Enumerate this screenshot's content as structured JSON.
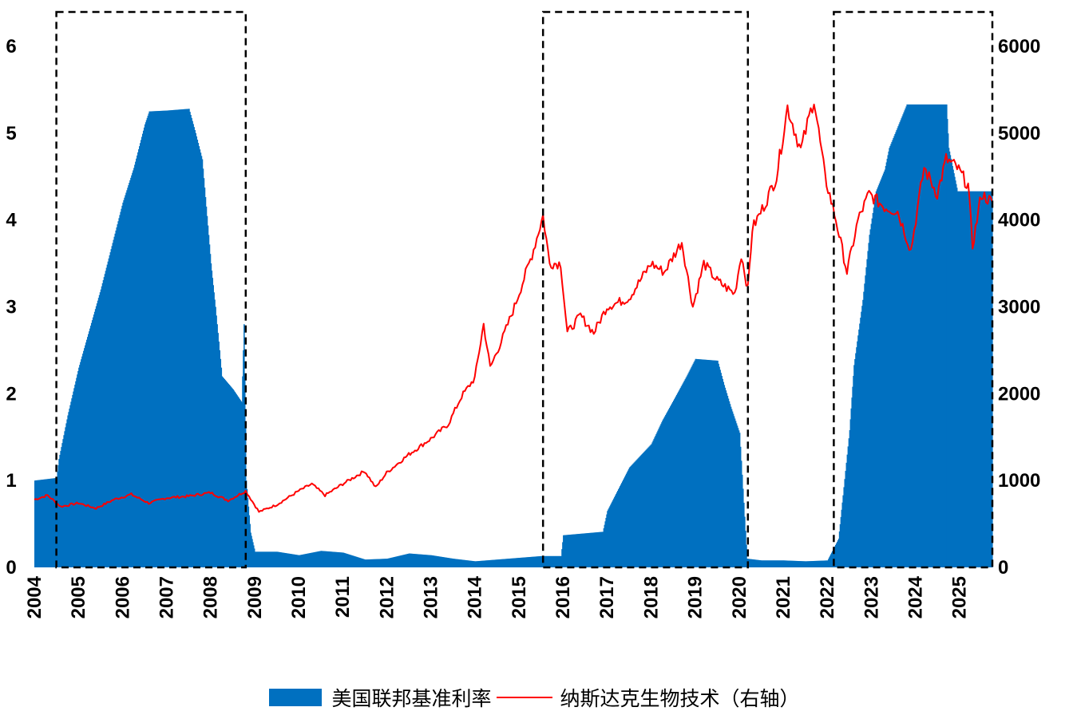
{
  "chart_data": {
    "type": "bar+line",
    "colors": {
      "bar": "#0070C0",
      "line": "#FF0000",
      "box": "#000000"
    },
    "x_years": [
      "2004",
      "2005",
      "2006",
      "2007",
      "2008",
      "2009",
      "2010",
      "2011",
      "2012",
      "2013",
      "2014",
      "2015",
      "2016",
      "2017",
      "2018",
      "2019",
      "2020",
      "2021",
      "2022",
      "2023",
      "2024",
      "2025"
    ],
    "x_range": [
      2004.0,
      2025.75
    ],
    "left_axis": {
      "ticks": [
        "0",
        "1",
        "2",
        "3",
        "4",
        "5",
        "6"
      ],
      "range": [
        0,
        6
      ]
    },
    "right_axis": {
      "ticks": [
        "0",
        "1000",
        "2000",
        "3000",
        "4000",
        "5000",
        "6000"
      ],
      "range": [
        0,
        6000
      ]
    },
    "series": [
      {
        "name": "美国联邦基准利率",
        "kind": "bar",
        "axis": "left",
        "points": [
          [
            2004.0,
            1.0
          ],
          [
            2004.5,
            1.03
          ],
          [
            2004.55,
            1.25
          ],
          [
            2004.75,
            1.75
          ],
          [
            2005.0,
            2.3
          ],
          [
            2005.25,
            2.75
          ],
          [
            2005.5,
            3.2
          ],
          [
            2005.75,
            3.7
          ],
          [
            2006.0,
            4.2
          ],
          [
            2006.25,
            4.6
          ],
          [
            2006.5,
            5.1
          ],
          [
            2006.6,
            5.25
          ],
          [
            2007.0,
            5.26
          ],
          [
            2007.5,
            5.28
          ],
          [
            2007.65,
            5.0
          ],
          [
            2007.8,
            4.7
          ],
          [
            2008.0,
            3.5
          ],
          [
            2008.1,
            3.0
          ],
          [
            2008.25,
            2.2
          ],
          [
            2008.5,
            2.05
          ],
          [
            2008.7,
            1.9
          ],
          [
            2008.75,
            2.8
          ],
          [
            2008.8,
            1.0
          ],
          [
            2008.9,
            0.4
          ],
          [
            2009.0,
            0.18
          ],
          [
            2009.5,
            0.18
          ],
          [
            2010.0,
            0.14
          ],
          [
            2010.5,
            0.19
          ],
          [
            2011.0,
            0.17
          ],
          [
            2011.5,
            0.09
          ],
          [
            2012.0,
            0.1
          ],
          [
            2012.5,
            0.16
          ],
          [
            2013.0,
            0.14
          ],
          [
            2013.5,
            0.1
          ],
          [
            2014.0,
            0.07
          ],
          [
            2014.5,
            0.09
          ],
          [
            2015.0,
            0.11
          ],
          [
            2015.5,
            0.13
          ],
          [
            2015.95,
            0.13
          ],
          [
            2016.0,
            0.37
          ],
          [
            2016.9,
            0.41
          ],
          [
            2017.0,
            0.65
          ],
          [
            2017.25,
            0.9
          ],
          [
            2017.5,
            1.15
          ],
          [
            2018.0,
            1.42
          ],
          [
            2018.25,
            1.69
          ],
          [
            2018.5,
            1.92
          ],
          [
            2018.8,
            2.2
          ],
          [
            2019.0,
            2.4
          ],
          [
            2019.5,
            2.38
          ],
          [
            2019.65,
            2.1
          ],
          [
            2019.8,
            1.85
          ],
          [
            2020.0,
            1.55
          ],
          [
            2020.17,
            0.1
          ],
          [
            2020.5,
            0.08
          ],
          [
            2021.0,
            0.08
          ],
          [
            2021.5,
            0.07
          ],
          [
            2022.0,
            0.08
          ],
          [
            2022.25,
            0.33
          ],
          [
            2022.35,
            0.83
          ],
          [
            2022.5,
            1.58
          ],
          [
            2022.6,
            2.33
          ],
          [
            2022.8,
            3.08
          ],
          [
            2022.95,
            3.83
          ],
          [
            2023.1,
            4.33
          ],
          [
            2023.3,
            4.58
          ],
          [
            2023.4,
            4.83
          ],
          [
            2023.6,
            5.08
          ],
          [
            2023.8,
            5.33
          ],
          [
            2024.7,
            5.33
          ],
          [
            2024.75,
            4.83
          ],
          [
            2024.85,
            4.58
          ],
          [
            2024.95,
            4.33
          ],
          [
            2025.75,
            4.33
          ]
        ]
      },
      {
        "name": "纳斯达克生物技术（右轴）",
        "kind": "line",
        "axis": "right",
        "points": [
          [
            2004.0,
            780
          ],
          [
            2004.3,
            830
          ],
          [
            2004.6,
            700
          ],
          [
            2005.0,
            740
          ],
          [
            2005.4,
            680
          ],
          [
            2005.8,
            780
          ],
          [
            2006.2,
            840
          ],
          [
            2006.6,
            740
          ],
          [
            2007.0,
            800
          ],
          [
            2007.5,
            820
          ],
          [
            2008.0,
            860
          ],
          [
            2008.4,
            770
          ],
          [
            2008.8,
            880
          ],
          [
            2009.1,
            640
          ],
          [
            2009.5,
            720
          ],
          [
            2010.0,
            880
          ],
          [
            2010.3,
            960
          ],
          [
            2010.6,
            830
          ],
          [
            2011.0,
            960
          ],
          [
            2011.5,
            1110
          ],
          [
            2011.75,
            920
          ],
          [
            2012.0,
            1090
          ],
          [
            2012.5,
            1300
          ],
          [
            2013.0,
            1480
          ],
          [
            2013.4,
            1650
          ],
          [
            2013.7,
            1970
          ],
          [
            2014.0,
            2180
          ],
          [
            2014.2,
            2800
          ],
          [
            2014.35,
            2300
          ],
          [
            2014.6,
            2600
          ],
          [
            2014.9,
            3000
          ],
          [
            2015.3,
            3600
          ],
          [
            2015.55,
            4050
          ],
          [
            2015.7,
            3500
          ],
          [
            2015.95,
            3500
          ],
          [
            2016.1,
            2700
          ],
          [
            2016.4,
            2900
          ],
          [
            2016.7,
            2700
          ],
          [
            2017.0,
            3000
          ],
          [
            2017.5,
            3100
          ],
          [
            2018.0,
            3500
          ],
          [
            2018.3,
            3400
          ],
          [
            2018.7,
            3750
          ],
          [
            2018.95,
            3000
          ],
          [
            2019.2,
            3500
          ],
          [
            2019.5,
            3300
          ],
          [
            2019.9,
            3150
          ],
          [
            2020.05,
            3600
          ],
          [
            2020.2,
            3200
          ],
          [
            2020.3,
            3900
          ],
          [
            2020.6,
            4200
          ],
          [
            2020.85,
            4500
          ],
          [
            2021.1,
            5300
          ],
          [
            2021.4,
            4800
          ],
          [
            2021.7,
            5400
          ],
          [
            2021.95,
            4500
          ],
          [
            2022.2,
            4000
          ],
          [
            2022.45,
            3400
          ],
          [
            2022.7,
            4000
          ],
          [
            2022.95,
            4300
          ],
          [
            2023.3,
            4150
          ],
          [
            2023.6,
            4100
          ],
          [
            2023.9,
            3650
          ],
          [
            2024.2,
            4600
          ],
          [
            2024.5,
            4300
          ],
          [
            2024.7,
            4700
          ],
          [
            2024.95,
            4600
          ],
          [
            2025.2,
            4400
          ],
          [
            2025.3,
            3700
          ],
          [
            2025.5,
            4300
          ],
          [
            2025.75,
            4200
          ]
        ]
      }
    ],
    "highlight_periods": [
      [
        2004.5,
        2008.8
      ],
      [
        2015.55,
        2020.2
      ],
      [
        2022.15,
        2025.75
      ]
    ]
  },
  "legend": {
    "bar_label": "美国联邦基准利率",
    "line_label": "纳斯达克生物技术（右轴）"
  }
}
